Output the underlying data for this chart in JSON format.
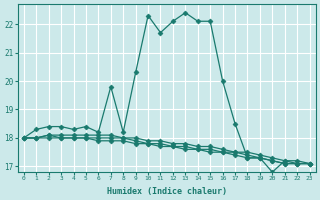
{
  "xlabel": "Humidex (Indice chaleur)",
  "ylabel": "",
  "background_color": "#cce9ea",
  "grid_color": "#ffffff",
  "line_color": "#1a7a6e",
  "xlim": [
    -0.5,
    23.5
  ],
  "ylim": [
    16.8,
    22.7
  ],
  "yticks": [
    17,
    18,
    19,
    20,
    21,
    22
  ],
  "xticks": [
    0,
    1,
    2,
    3,
    4,
    5,
    6,
    7,
    8,
    9,
    10,
    11,
    12,
    13,
    14,
    15,
    16,
    17,
    18,
    19,
    20,
    21,
    22,
    23
  ],
  "series": [
    [
      18.0,
      18.3,
      18.4,
      18.4,
      18.3,
      18.4,
      18.2,
      19.8,
      18.2,
      20.3,
      22.3,
      21.7,
      22.1,
      22.4,
      22.1,
      22.1,
      20.0,
      18.5,
      17.3,
      17.3,
      16.8,
      17.2,
      17.2,
      17.1
    ],
    [
      18.0,
      18.0,
      18.1,
      18.1,
      18.1,
      18.1,
      18.1,
      18.1,
      18.0,
      18.0,
      17.9,
      17.9,
      17.8,
      17.8,
      17.7,
      17.7,
      17.6,
      17.5,
      17.5,
      17.4,
      17.3,
      17.2,
      17.1,
      17.1
    ],
    [
      18.0,
      18.0,
      18.1,
      18.0,
      18.0,
      18.0,
      18.0,
      18.0,
      18.0,
      17.9,
      17.8,
      17.8,
      17.7,
      17.7,
      17.6,
      17.6,
      17.5,
      17.5,
      17.4,
      17.3,
      17.2,
      17.1,
      17.1,
      17.1
    ],
    [
      18.0,
      18.0,
      18.0,
      18.0,
      18.0,
      18.0,
      17.9,
      17.9,
      17.9,
      17.8,
      17.8,
      17.7,
      17.7,
      17.6,
      17.6,
      17.5,
      17.5,
      17.4,
      17.3,
      17.3,
      17.2,
      17.1,
      17.1,
      17.1
    ]
  ],
  "marker": "D",
  "markersize": 2.5,
  "linewidth": 0.9
}
